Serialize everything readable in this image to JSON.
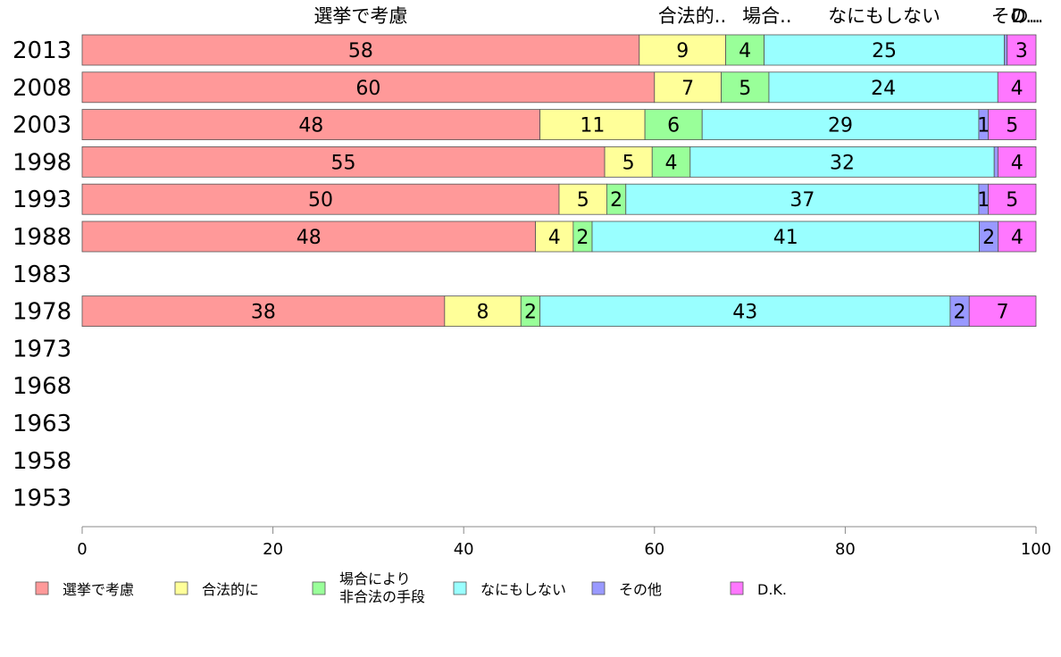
{
  "chart_data": {
    "type": "bar",
    "orientation": "horizontal",
    "stacked": true,
    "xlim": [
      0,
      100
    ],
    "xticks": [
      0,
      20,
      40,
      60,
      80,
      100
    ],
    "categories": [
      "2013",
      "2008",
      "2003",
      "1998",
      "1993",
      "1988",
      "1983",
      "1978",
      "1973",
      "1968",
      "1963",
      "1958",
      "1953"
    ],
    "series": [
      {
        "name": "選挙で考慮",
        "color": "#ff9999",
        "values": [
          58,
          60,
          48,
          55,
          50,
          48,
          null,
          38,
          null,
          null,
          null,
          null,
          null
        ]
      },
      {
        "name": "合法的に",
        "color": "#ffff99",
        "values": [
          9,
          7,
          11,
          5,
          5,
          4,
          null,
          8,
          null,
          null,
          null,
          null,
          null
        ]
      },
      {
        "name": "場合により\n非合法の手段",
        "color": "#99ff99",
        "values": [
          4,
          5,
          6,
          4,
          2,
          2,
          null,
          2,
          null,
          null,
          null,
          null,
          null
        ]
      },
      {
        "name": "なにもしない",
        "color": "#99ffff",
        "values": [
          25,
          24,
          29,
          32,
          37,
          41,
          null,
          43,
          null,
          null,
          null,
          null,
          null
        ]
      },
      {
        "name": "その他",
        "color": "#9999ff",
        "values": [
          0.3,
          0,
          1,
          0.4,
          1,
          2,
          null,
          2,
          null,
          null,
          null,
          null,
          null
        ]
      },
      {
        "name": "D.K.",
        "color": "#ff77ff",
        "values": [
          3,
          4,
          5,
          4,
          5,
          4,
          null,
          7,
          null,
          null,
          null,
          null,
          null
        ]
      }
    ],
    "top_labels": [
      "選挙で考慮",
      "合法的..",
      "場合..",
      "なにもしない",
      "その..",
      "D..."
    ],
    "legend_position": "bottom"
  }
}
